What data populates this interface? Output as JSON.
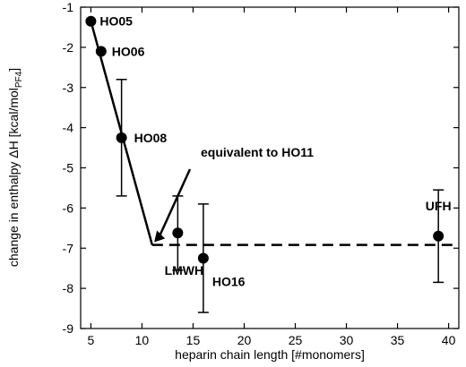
{
  "chart_data": {
    "type": "scatter",
    "xlabel": "heparin chain length [#monomers]",
    "ylabel": {
      "main": "change in enthalpy ΔH [kcal/mol",
      "sub": "PF4",
      "close": "]"
    },
    "xlim": [
      4,
      41
    ],
    "ylim": [
      -9,
      -1
    ],
    "xticks": [
      5,
      10,
      15,
      20,
      25,
      30,
      35,
      40
    ],
    "yticks": [
      -1,
      -2,
      -3,
      -4,
      -5,
      -6,
      -7,
      -8,
      -9
    ],
    "grid": false,
    "legend": "none",
    "points": [
      {
        "label": "HO05",
        "x": 5,
        "y": -1.35,
        "err_low": null,
        "err_high": null
      },
      {
        "label": "HO06",
        "x": 6,
        "y": -2.1,
        "err_low": null,
        "err_high": null
      },
      {
        "label": "HO08",
        "x": 8,
        "y": -4.25,
        "err_low": -5.7,
        "err_high": -2.8
      },
      {
        "label": "LMWH",
        "x": 13.5,
        "y": -6.62,
        "err_low": -7.55,
        "err_high": -5.7
      },
      {
        "label": "HO16",
        "x": 16,
        "y": -7.25,
        "err_low": -8.6,
        "err_high": -5.9
      },
      {
        "label": "UFH",
        "x": 39,
        "y": -6.7,
        "err_low": -7.85,
        "err_high": -5.55
      }
    ],
    "fit_line": {
      "x": [
        5,
        11
      ],
      "y": [
        -1.35,
        -6.92
      ]
    },
    "plateau_line": {
      "x": [
        11,
        41
      ],
      "y": [
        -6.92,
        -6.92
      ]
    },
    "annotation": {
      "text": "equivalent to HO11",
      "arrow_to": {
        "x": 11.2,
        "y": -6.85
      }
    }
  }
}
